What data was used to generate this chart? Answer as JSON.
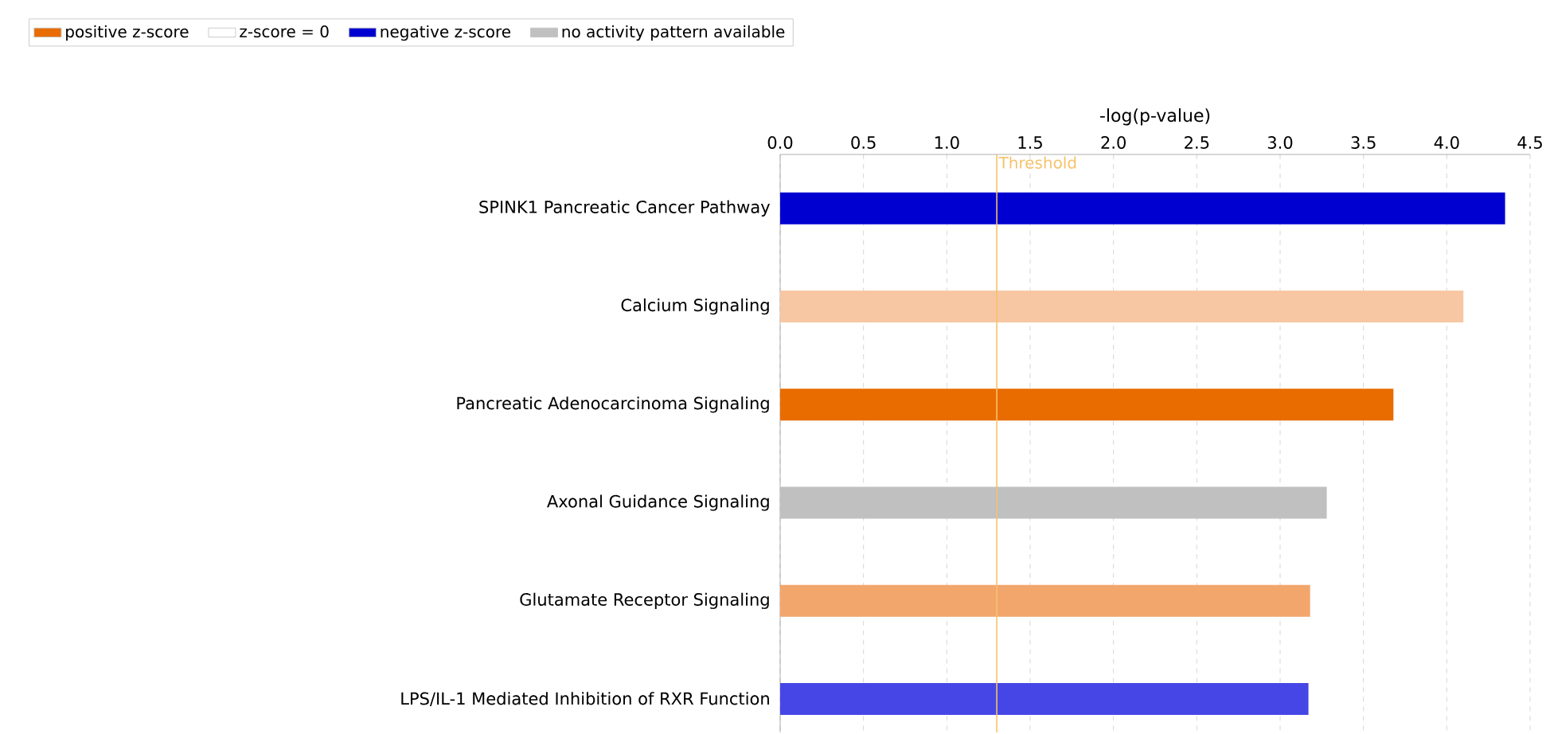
{
  "chart_data": {
    "type": "bar",
    "orientation": "horizontal",
    "xlabel": "-log(p-value)",
    "categories": [
      "SPINK1 Pancreatic Cancer Pathway",
      "Calcium Signaling",
      "Pancreatic Adenocarcinoma Signaling",
      "Axonal Guidance Signaling",
      "Glutamate Receptor Signaling",
      "LPS/IL-1 Mediated Inhibition of RXR Function"
    ],
    "series": [
      {
        "name": "positive z-score",
        "color": "#e86c00",
        "colors": [
          null,
          "#f7c7a3",
          "#e86c00",
          null,
          "#f2a66c",
          null
        ],
        "values": [
          null,
          4.1,
          3.68,
          null,
          3.18,
          null
        ]
      },
      {
        "name": "z-score = 0",
        "color": "#ffffff",
        "values": [
          null,
          null,
          null,
          null,
          null,
          null
        ]
      },
      {
        "name": "negative z-score",
        "color": "#0000d0",
        "colors": [
          "#0000d0",
          null,
          null,
          null,
          null,
          "#4646e6"
        ],
        "values": [
          4.35,
          null,
          null,
          null,
          null,
          3.17
        ]
      },
      {
        "name": "no activity pattern available",
        "color": "#c0c0c0",
        "values": [
          null,
          null,
          null,
          3.28,
          null,
          null
        ]
      }
    ],
    "xlim": [
      0,
      4.5
    ],
    "xticks": [
      {
        "value": 0,
        "label": "0.0"
      },
      {
        "value": 0.5,
        "label": "0.5"
      },
      {
        "value": 1,
        "label": "1.0"
      },
      {
        "value": 1.5,
        "label": "1.5"
      },
      {
        "value": 2,
        "label": "2.0"
      },
      {
        "value": 2.5,
        "label": "2.5"
      },
      {
        "value": 3,
        "label": "3.0"
      },
      {
        "value": 3.5,
        "label": "3.5"
      },
      {
        "value": 4,
        "label": "4.0"
      },
      {
        "value": 4.5,
        "label": "4.5"
      }
    ],
    "ref_lines": [
      {
        "axis": "x",
        "value": 1.3,
        "label": "Threshold",
        "color": "#f5c26b"
      }
    ],
    "grid": "x",
    "legend": "top left"
  }
}
